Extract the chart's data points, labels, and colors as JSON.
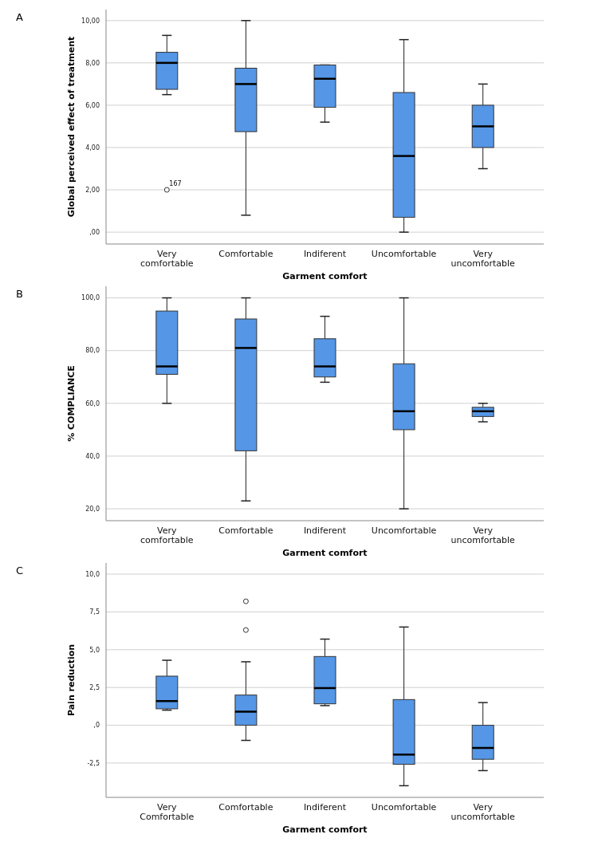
{
  "chart_data": [
    {
      "type": "box",
      "xlabel": "Garment comfort",
      "ylabel": "Global perceived effect of treatment",
      "categories": [
        "Very comfortable",
        "Comfortable",
        "Indiferent",
        "Uncomfortable",
        "Very uncomfortable"
      ],
      "color": "#5596e6",
      "grid": "y",
      "ylim": [
        -0.56,
        10.52
      ],
      "yticks": [
        {
          "value": 0,
          "label": ",00"
        },
        {
          "value": 2,
          "label": "2,00"
        },
        {
          "value": 4,
          "label": "4,00"
        },
        {
          "value": 6,
          "label": "6,00"
        },
        {
          "value": 8,
          "label": "8,00"
        },
        {
          "value": 10,
          "label": "10,00"
        }
      ],
      "boxes": [
        {
          "low": 6.5,
          "q1": 6.75,
          "median": 8.0,
          "q3": 8.5,
          "high": 9.3,
          "outliers": [
            2.0
          ]
        },
        {
          "low": 0.8,
          "q1": 4.75,
          "median": 7.0,
          "q3": 7.75,
          "high": 10.0
        },
        {
          "low": 5.2,
          "q1": 5.9,
          "median": 7.25,
          "q3": 7.9,
          "high": 7.9
        },
        {
          "low": 0.0,
          "q1": 0.7,
          "median": 3.6,
          "q3": 6.6,
          "high": 9.1
        },
        {
          "low": 3.0,
          "q1": 4.0,
          "median": 5.0,
          "q3": 6.0,
          "high": 7.0
        }
      ],
      "annotations": [
        "A",
        "167"
      ]
    },
    {
      "type": "box",
      "xlabel": "Garment comfort",
      "ylabel": "% COMPLIANCE",
      "categories": [
        "Very comfortable",
        "Comfortable",
        "Indiferent",
        "Uncomfortable",
        "Very uncomfortable"
      ],
      "color": "#5596e6",
      "grid": "y",
      "ylim": [
        15.5,
        104.4
      ],
      "yticks": [
        {
          "value": 20,
          "label": "20,0"
        },
        {
          "value": 40,
          "label": "40,0"
        },
        {
          "value": 60,
          "label": "60,0"
        },
        {
          "value": 80,
          "label": "80,0"
        },
        {
          "value": 100,
          "label": "100,0"
        }
      ],
      "boxes": [
        {
          "low": 60,
          "q1": 71,
          "median": 74,
          "q3": 95,
          "high": 100
        },
        {
          "low": 23,
          "q1": 42,
          "median": 81,
          "q3": 92,
          "high": 100
        },
        {
          "low": 68,
          "q1": 70,
          "median": 74,
          "q3": 84.5,
          "high": 93
        },
        {
          "low": 20,
          "q1": 50,
          "median": 57,
          "q3": 75,
          "high": 100
        },
        {
          "low": 53,
          "q1": 55,
          "median": 57,
          "q3": 58.5,
          "high": 60
        }
      ],
      "annotations": [
        "B"
      ]
    },
    {
      "type": "box",
      "xlabel": "Garment comfort",
      "ylabel": "Pain reduction",
      "categories": [
        "Very Comfortable",
        "Comfortable",
        "Indiferent",
        "Uncomfortable",
        "Very uncomfortable"
      ],
      "color": "#5596e6",
      "grid": "y",
      "ylim": [
        -4.77,
        10.74
      ],
      "yticks": [
        {
          "value": -2.5,
          "label": "-2,5"
        },
        {
          "value": 0,
          "label": ",0"
        },
        {
          "value": 2.5,
          "label": "2,5"
        },
        {
          "value": 5,
          "label": "5,0"
        },
        {
          "value": 7.5,
          "label": "7,5"
        },
        {
          "value": 10,
          "label": "10,0"
        }
      ],
      "boxes": [
        {
          "low": 1.0,
          "q1": 1.09,
          "median": 1.6,
          "q3": 3.25,
          "high": 4.3
        },
        {
          "low": -1.0,
          "q1": 0.0,
          "median": 0.9,
          "q3": 2.0,
          "high": 4.2,
          "outliers": [
            6.3,
            8.2
          ]
        },
        {
          "low": 1.3,
          "q1": 1.42,
          "median": 2.46,
          "q3": 4.55,
          "high": 5.7
        },
        {
          "low": -4.0,
          "q1": -2.58,
          "median": -1.94,
          "q3": 1.7,
          "high": 6.5
        },
        {
          "low": -3.0,
          "q1": -2.25,
          "median": -1.5,
          "q3": 0.0,
          "high": 1.5
        }
      ],
      "annotations": [
        "C"
      ]
    }
  ]
}
